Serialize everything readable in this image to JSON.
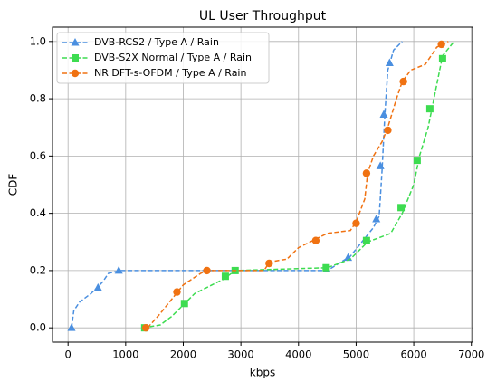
{
  "chart_data": {
    "type": "line",
    "title": "UL User Throughput",
    "xlabel": "kbps",
    "ylabel": "CDF",
    "xlim": [
      -270,
      7020
    ],
    "ylim": [
      -0.05,
      1.05
    ],
    "xticks": [
      0,
      1000,
      2000,
      3000,
      4000,
      5000,
      6000,
      7000
    ],
    "yticks": [
      {
        "value": 0,
        "label": "0.0"
      },
      0.2,
      0.4,
      0.6,
      0.8,
      {
        "value": 1,
        "label": "1.0"
      }
    ],
    "grid": true,
    "legend": "upper left",
    "series": [
      {
        "name": "DVB-RCS2 / Type A / Rain",
        "color": "#4a8fe0",
        "marker": "triangle",
        "x": [
          60,
          100,
          200,
          400,
          600,
          700,
          900,
          4500,
          4900,
          5100,
          5300,
          5400,
          5450,
          5500,
          5550,
          5650,
          5800
        ],
        "values": [
          0,
          0.06,
          0.09,
          0.12,
          0.16,
          0.19,
          0.2,
          0.2,
          0.25,
          0.3,
          0.35,
          0.39,
          0.55,
          0.75,
          0.9,
          0.97,
          1.0
        ],
        "marker_x": [
          60,
          520,
          880,
          4490,
          4860,
          5350,
          5420,
          5480,
          5580
        ],
        "marker_values": [
          0,
          0.14,
          0.2,
          0.205,
          0.245,
          0.38,
          0.565,
          0.745,
          0.925
        ]
      },
      {
        "name": "DVB-S2X Normal / Type A / Rain",
        "color": "#3ddc50",
        "marker": "square",
        "x": [
          1300,
          1600,
          1800,
          2000,
          2200,
          2500,
          2700,
          2900,
          4500,
          4900,
          5200,
          5600,
          5800,
          6000,
          6100,
          6250,
          6400,
          6500,
          6700
        ],
        "values": [
          0,
          0.01,
          0.04,
          0.08,
          0.12,
          0.15,
          0.17,
          0.2,
          0.21,
          0.24,
          0.3,
          0.33,
          0.4,
          0.5,
          0.6,
          0.7,
          0.85,
          0.95,
          1.0
        ],
        "marker_x": [
          1330,
          2020,
          2730,
          2900,
          4480,
          5180,
          5780,
          6060,
          6280,
          6500
        ],
        "marker_values": [
          0,
          0.085,
          0.18,
          0.2,
          0.21,
          0.305,
          0.42,
          0.585,
          0.765,
          0.94
        ]
      },
      {
        "name": "NR DFT-s-OFDM / Type A / Rain",
        "color": "#f07212",
        "marker": "circle",
        "x": [
          1380,
          1600,
          1800,
          2000,
          2300,
          2400,
          3400,
          3500,
          3800,
          4000,
          4300,
          4500,
          4900,
          5000,
          5150,
          5200,
          5300,
          5450,
          5550,
          5700,
          5800,
          5950,
          6200,
          6400,
          6600
        ],
        "values": [
          0,
          0.05,
          0.1,
          0.15,
          0.19,
          0.2,
          0.2,
          0.23,
          0.24,
          0.28,
          0.31,
          0.33,
          0.34,
          0.37,
          0.45,
          0.54,
          0.6,
          0.65,
          0.7,
          0.8,
          0.86,
          0.9,
          0.92,
          0.98,
          1.0
        ],
        "marker_x": [
          1350,
          1890,
          2410,
          3490,
          4300,
          5000,
          5180,
          5550,
          5820,
          6480
        ],
        "marker_values": [
          0,
          0.125,
          0.2,
          0.225,
          0.305,
          0.365,
          0.54,
          0.69,
          0.86,
          0.99
        ]
      }
    ]
  }
}
